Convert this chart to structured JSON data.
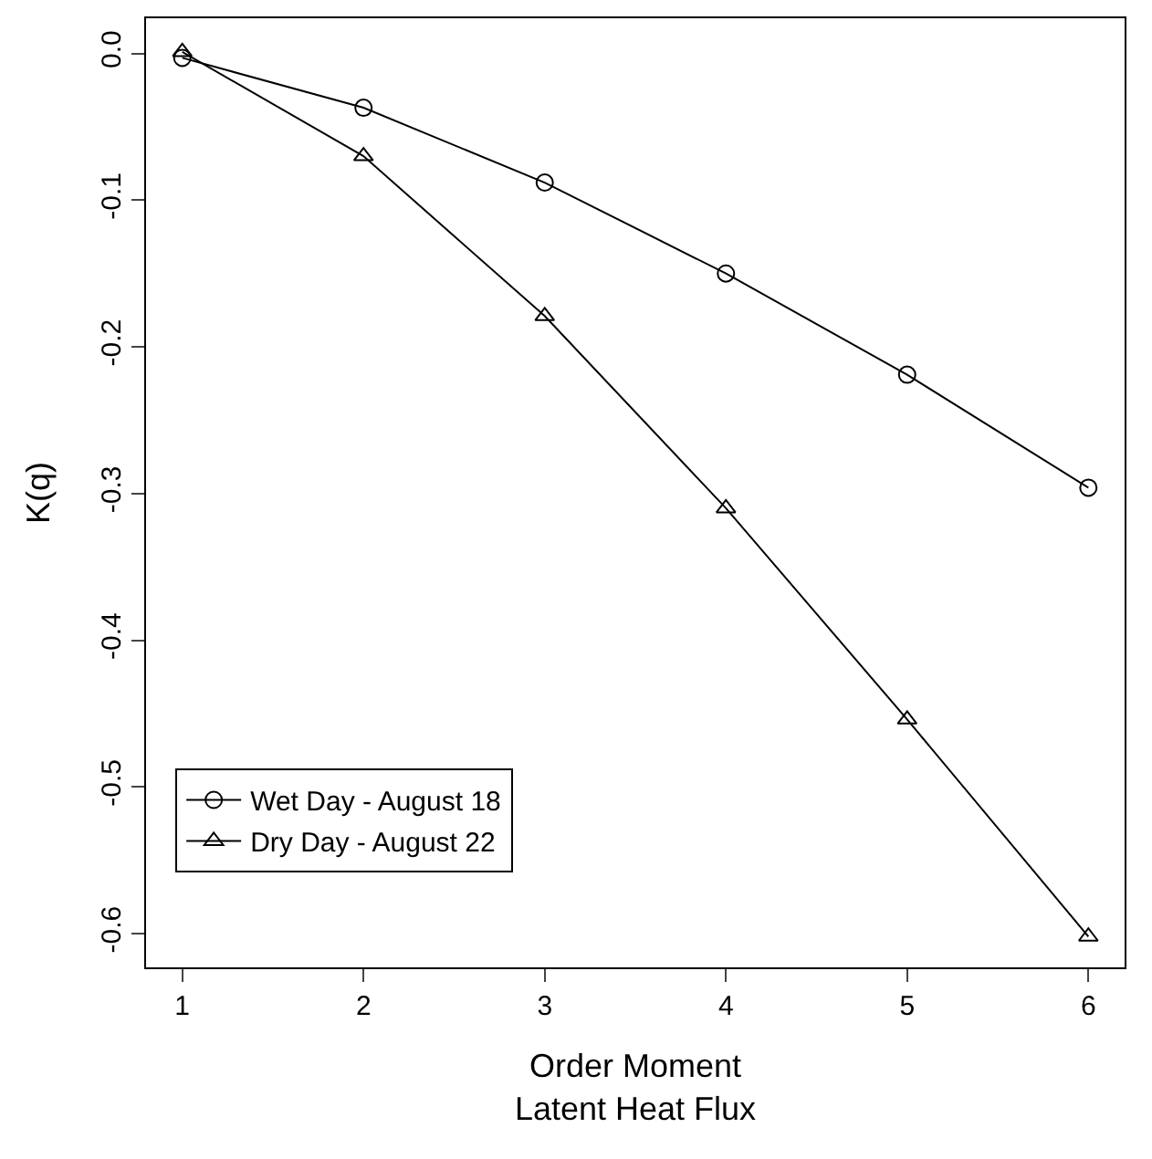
{
  "chart_data": {
    "type": "line",
    "xlabel": "Order Moment\nLatent Heat Flux",
    "ylabel": "K(q)",
    "x": [
      1,
      2,
      3,
      4,
      5,
      6
    ],
    "series": [
      {
        "name": "Wet Day - August 18",
        "color": "#000000",
        "marker": "circle",
        "values": [
          -0.003,
          -0.037,
          -0.088,
          -0.15,
          -0.219,
          -0.296
        ]
      },
      {
        "name": "Dry Day - August 22",
        "color": "#000000",
        "marker": "triangle",
        "values": [
          0.001,
          -0.07,
          -0.179,
          -0.31,
          -0.454,
          -0.602
        ]
      }
    ],
    "xlim": [
      0.8,
      6.2
    ],
    "xticks": [
      1,
      2,
      3,
      4,
      5,
      6
    ],
    "ylim": [
      -0.623,
      0.024
    ],
    "yticks": [
      {
        "value": 0,
        "label": "0.0"
      },
      {
        "value": -0.1,
        "label": "-0.1"
      },
      {
        "value": -0.2,
        "label": "-0.2"
      },
      {
        "value": -0.3,
        "label": "-0.3"
      },
      {
        "value": -0.4,
        "label": "-0.4"
      },
      {
        "value": -0.5,
        "label": "-0.5"
      },
      {
        "value": -0.6,
        "label": "-0.6"
      }
    ],
    "legend": "bottom left",
    "line_style": "solid"
  }
}
